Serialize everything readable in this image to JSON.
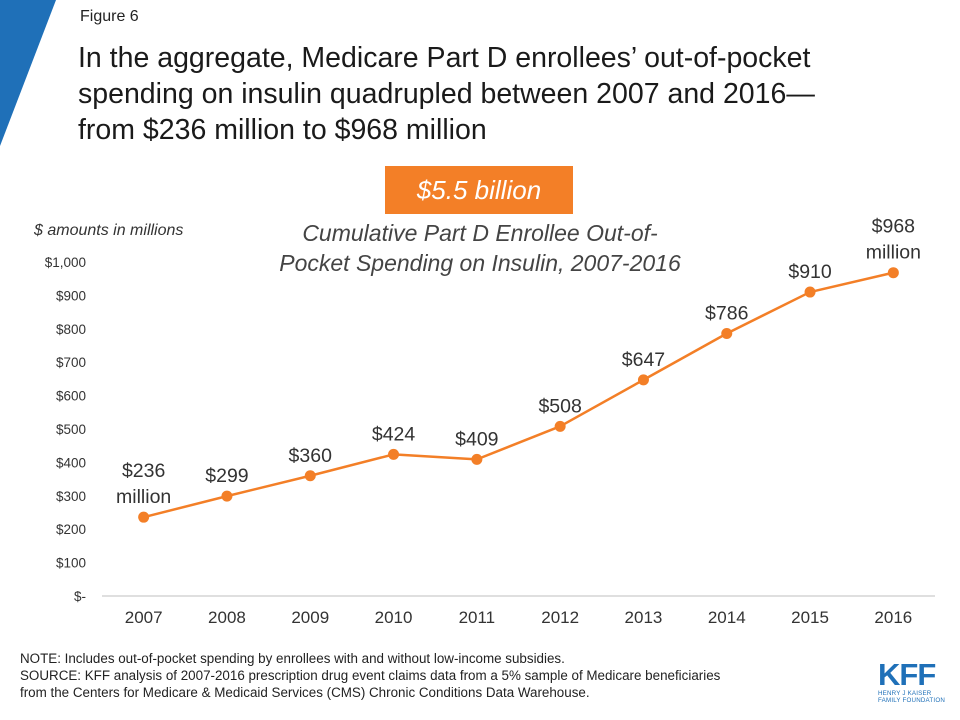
{
  "figure_label": "Figure 6",
  "headline": [
    "In the aggregate, Medicare Part D enrollees’ out-of-pocket",
    "spending on insulin quadrupled between 2007 and 2016—",
    "from $236 million to $968 million"
  ],
  "badge": "$5.5 billion",
  "colors": {
    "accent": "#f37f27",
    "corner": "#1f70b8",
    "logo": "#1f70b8"
  },
  "chart_data": {
    "type": "line",
    "title": "Cumulative Part D Enrollee Out-of-Pocket Spending on Insulin, 2007-2016",
    "title_lines": [
      "Cumulative Part D Enrollee Out-of-",
      "Pocket Spending on Insulin, 2007-2016"
    ],
    "ylabel": "$ amounts in millions",
    "categories": [
      "2007",
      "2008",
      "2009",
      "2010",
      "2011",
      "2012",
      "2013",
      "2014",
      "2015",
      "2016"
    ],
    "values": [
      236,
      299,
      360,
      424,
      409,
      508,
      647,
      786,
      910,
      968
    ],
    "data_labels": [
      [
        "$236",
        "million"
      ],
      [
        "$299"
      ],
      [
        "$360"
      ],
      [
        "$424"
      ],
      [
        "$409"
      ],
      [
        "$508"
      ],
      [
        "$647"
      ],
      [
        "$786"
      ],
      [
        "$910"
      ],
      [
        "$968",
        "million"
      ]
    ],
    "ylim": [
      0,
      1000
    ],
    "yticks": [
      0,
      100,
      200,
      300,
      400,
      500,
      600,
      700,
      800,
      900,
      1000
    ],
    "ytick_labels": [
      "$-",
      "$100",
      "$200",
      "$300",
      "$400",
      "$500",
      "$600",
      "$700",
      "$800",
      "$900",
      "$1,000"
    ],
    "grid": false,
    "color": "#f37f27"
  },
  "notes": [
    "NOTE: Includes out-of-pocket spending by enrollees with and without low-income subsidies.",
    "SOURCE: KFF analysis of 2007-2016 prescription drug event claims data from a 5% sample of Medicare beneficiaries",
    "from the Centers for Medicare & Medicaid Services (CMS) Chronic Conditions Data Warehouse."
  ],
  "logo": {
    "mark": "KFF",
    "sub": [
      "HENRY J KAISER",
      "FAMILY FOUNDATION"
    ]
  }
}
